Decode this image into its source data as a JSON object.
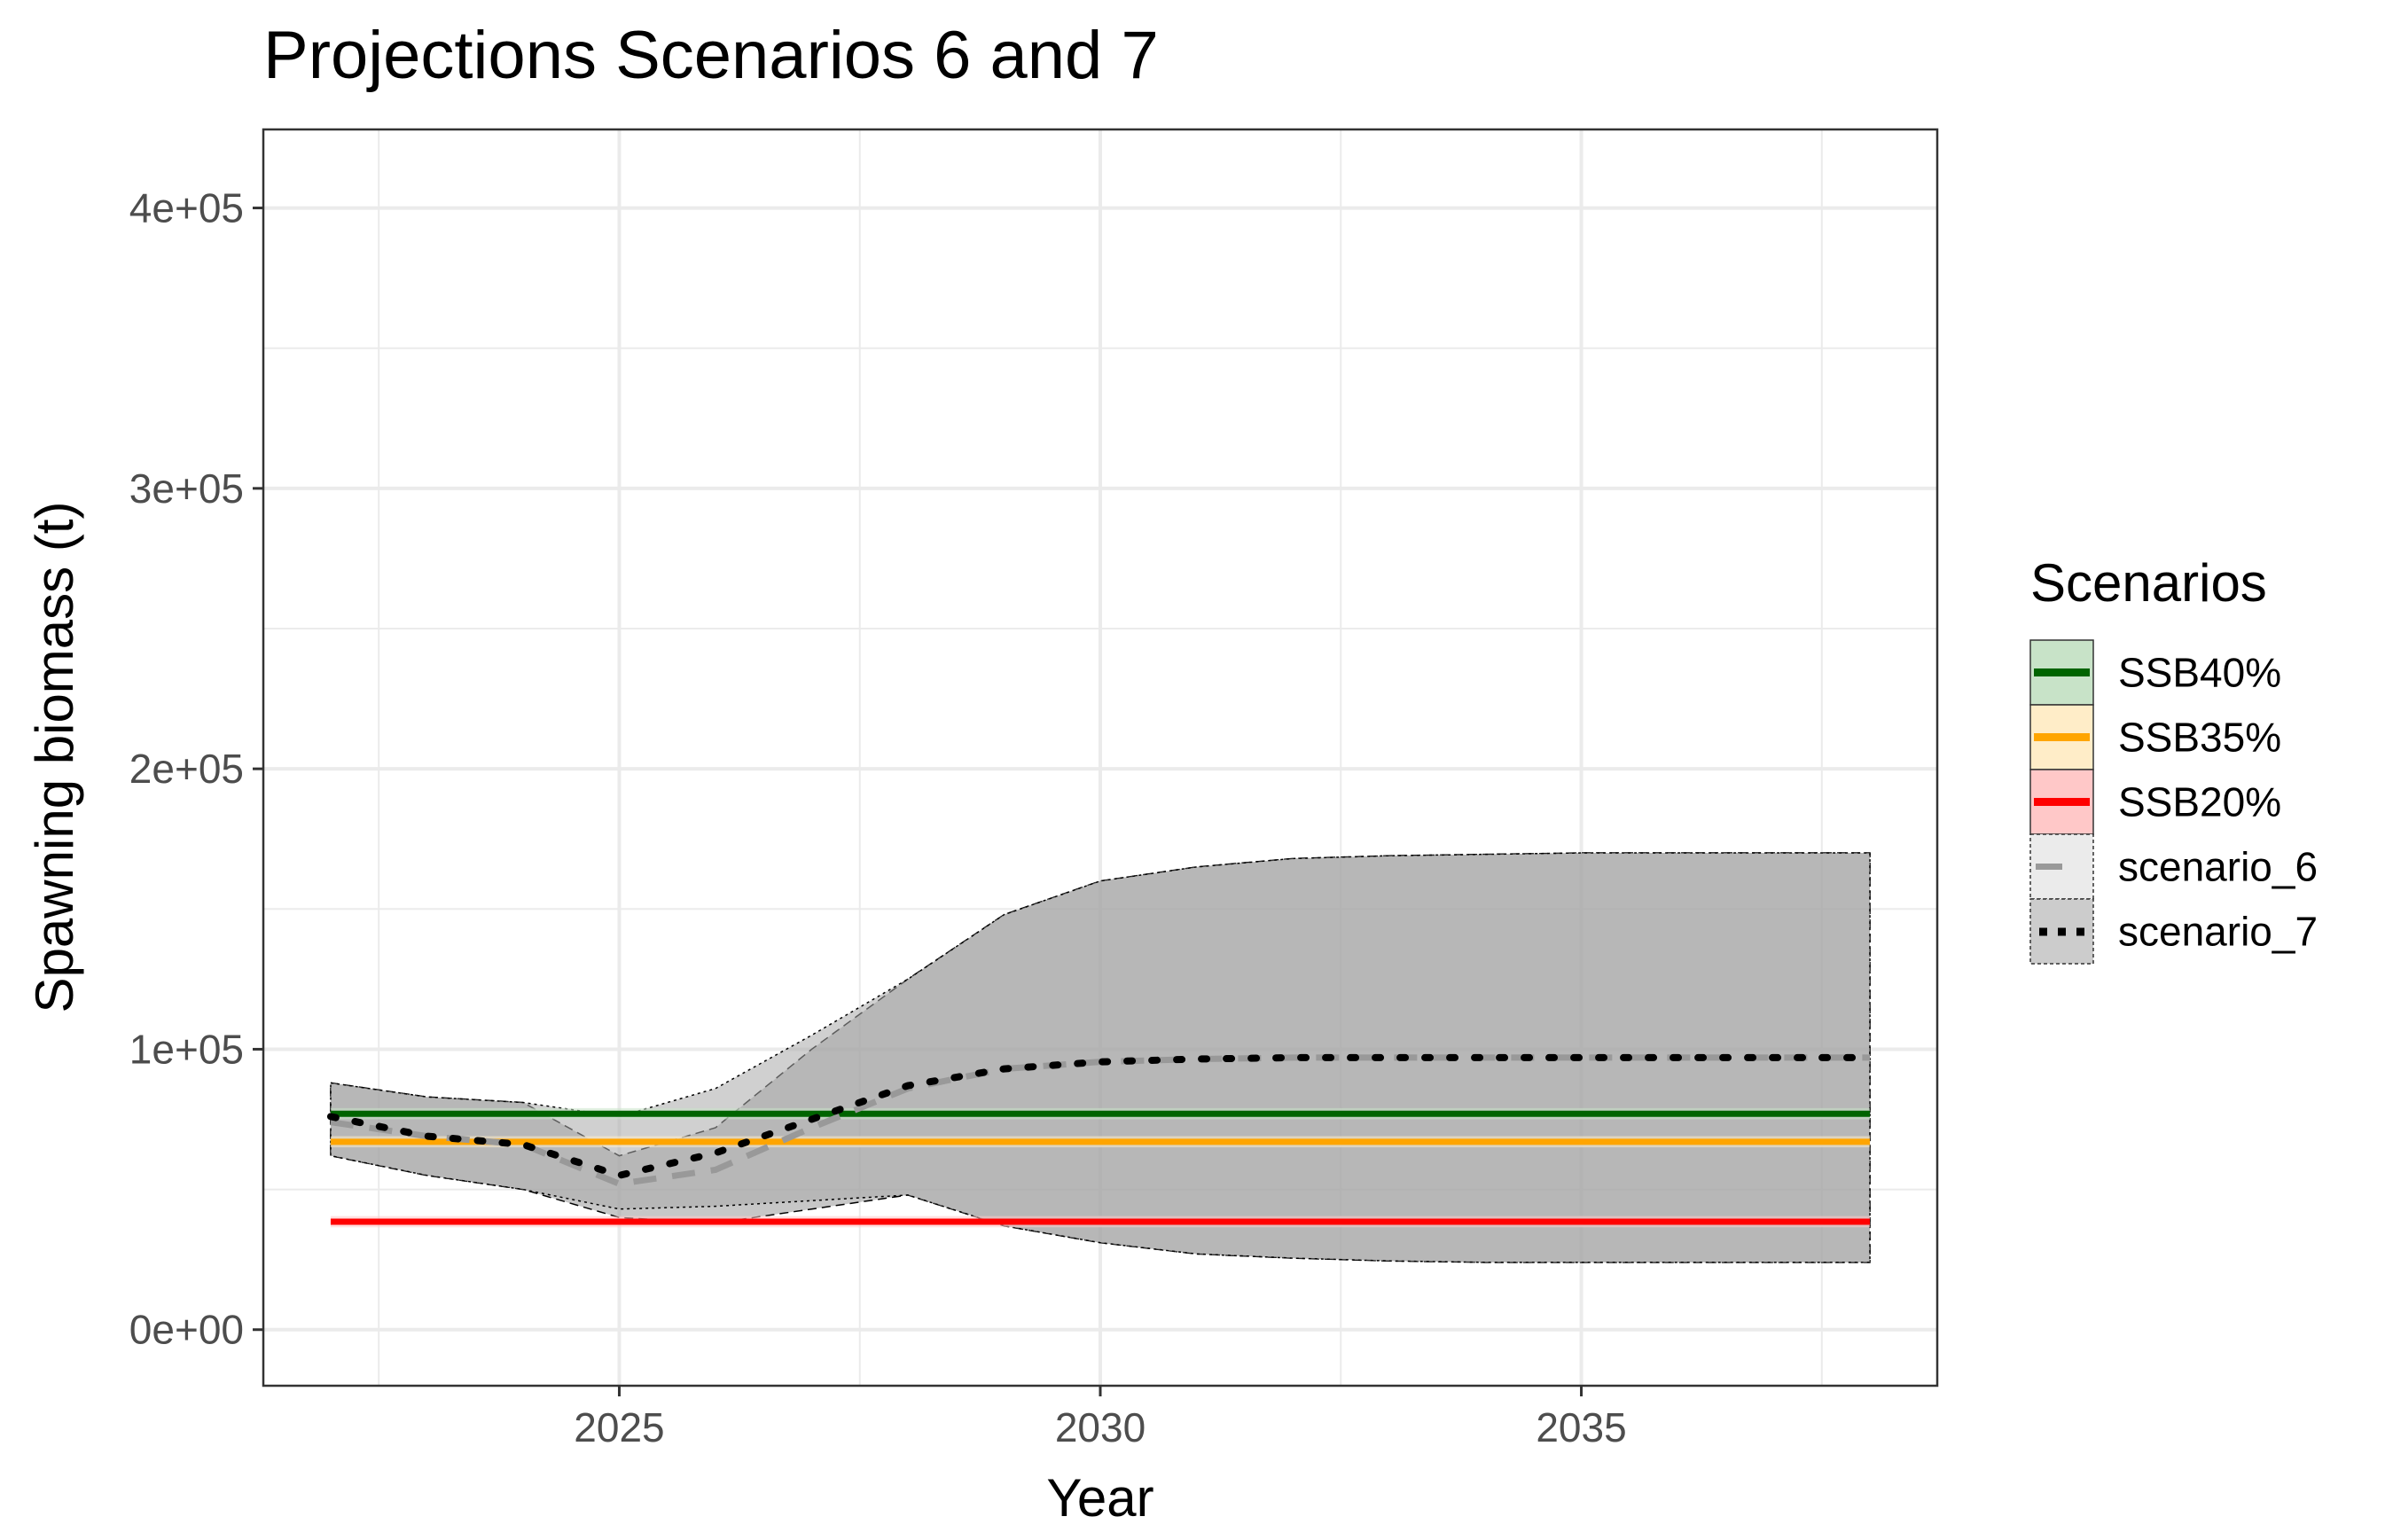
{
  "chart_data": {
    "type": "line",
    "title": "Projections Scenarios 6 and 7",
    "xlabel": "Year",
    "ylabel": "Spawning biomass (t)",
    "xlim": [
      2021.3,
      2038.7
    ],
    "ylim": [
      -20000,
      428000
    ],
    "x_ticks": [
      2025,
      2030,
      2035
    ],
    "x_tick_labels": [
      "2025",
      "2030",
      "2035"
    ],
    "y_ticks": [
      0,
      100000,
      200000,
      300000,
      400000
    ],
    "y_tick_labels": [
      "0e+00",
      "1e+05",
      "2e+05",
      "3e+05",
      "4e+05"
    ],
    "grid": true,
    "legend": {
      "title": "Scenarios",
      "position": "right",
      "entries": [
        {
          "label": "SSB40%",
          "type": "hline",
          "color": "#006400",
          "fill": "#c8e3c8"
        },
        {
          "label": "SSB35%",
          "type": "hline",
          "color": "#ffa500",
          "fill": "#ffedc8"
        },
        {
          "label": "SSB20%",
          "type": "hline",
          "color": "#ff0000",
          "fill": "#ffc8c8"
        },
        {
          "label": "scenario_6",
          "type": "series",
          "color": "#999999",
          "fill": "#ebebeb",
          "linestyle": "dashed"
        },
        {
          "label": "scenario_7",
          "type": "series",
          "color": "#000000",
          "fill": "#cccccc",
          "linestyle": "dotted"
        }
      ]
    },
    "reference_lines": [
      {
        "name": "SSB40%",
        "y": 77000,
        "color": "#006400",
        "band_color": "#c8e3c8",
        "band": [
          75000,
          79000
        ]
      },
      {
        "name": "SSB35%",
        "y": 67000,
        "color": "#ffa500",
        "band_color": "#ffedc8",
        "band": [
          65000,
          69000
        ]
      },
      {
        "name": "SSB20%",
        "y": 38500,
        "color": "#ff0000",
        "band_color": "#ffc8c8",
        "band": [
          36500,
          40500
        ]
      }
    ],
    "x_start": 2022,
    "x_end": 2038,
    "series": [
      {
        "name": "scenario_6",
        "color": "#999999",
        "linestyle": "dashed",
        "x": [
          2022,
          2023,
          2024,
          2025,
          2026,
          2027,
          2028,
          2029,
          2030,
          2031,
          2032,
          2033,
          2034,
          2035,
          2036,
          2037,
          2038
        ],
        "values": [
          74000,
          69000,
          66000,
          52000,
          57000,
          72000,
          86000,
          93000,
          95500,
          96500,
          97000,
          97000,
          97000,
          97000,
          97000,
          97000,
          97000
        ],
        "upper": [
          88000,
          83000,
          81000,
          62000,
          72000,
          100000,
          125000,
          148000,
          160000,
          165000,
          168000,
          169000,
          169500,
          170000,
          170000,
          170000,
          170000
        ],
        "lower": [
          62000,
          55000,
          50000,
          40000,
          38000,
          43000,
          48000,
          37000,
          31000,
          27000,
          25500,
          24500,
          24000,
          24000,
          24000,
          24000,
          24000
        ]
      },
      {
        "name": "scenario_7",
        "color": "#000000",
        "linestyle": "dotted",
        "x": [
          2022,
          2023,
          2024,
          2025,
          2026,
          2027,
          2028,
          2029,
          2030,
          2031,
          2032,
          2033,
          2034,
          2035,
          2036,
          2037,
          2038
        ],
        "values": [
          76000,
          69000,
          66000,
          55000,
          63000,
          75000,
          87000,
          93000,
          95500,
          96500,
          97000,
          97000,
          97000,
          97000,
          97000,
          97000,
          97000
        ],
        "upper": [
          88000,
          83000,
          81000,
          76000,
          86000,
          105000,
          125000,
          148000,
          160000,
          165000,
          168000,
          169000,
          169500,
          170000,
          170000,
          170000,
          170000
        ],
        "lower": [
          62000,
          55000,
          50000,
          43000,
          44000,
          46000,
          48000,
          37000,
          31000,
          27000,
          25500,
          24500,
          24000,
          24000,
          24000,
          24000,
          24000
        ]
      }
    ]
  }
}
